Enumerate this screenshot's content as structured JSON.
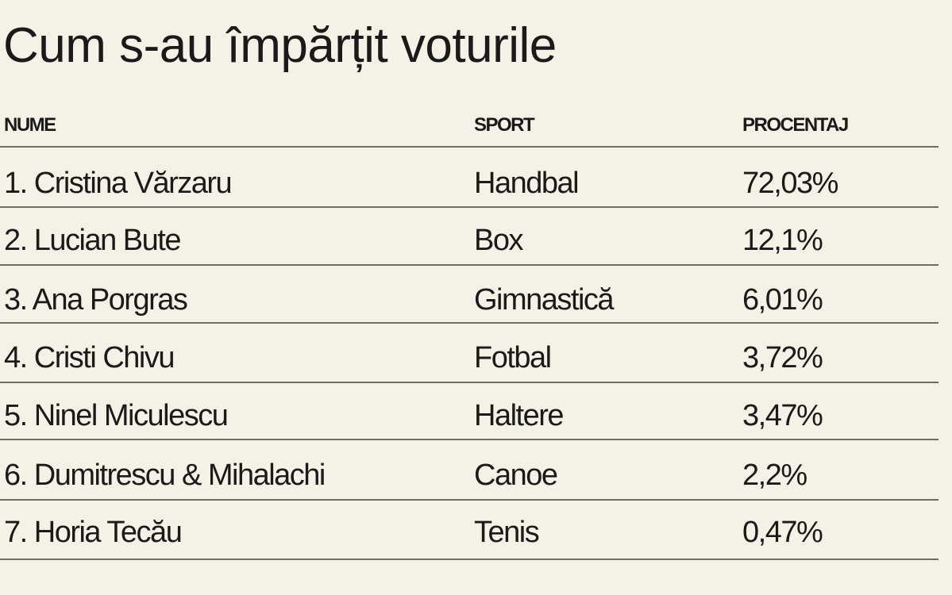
{
  "title": "Cum s-au împărțit voturile",
  "table": {
    "header": [
      "NUME",
      "SPORT",
      "PROCENTAJ"
    ],
    "rows": [
      [
        "1. Cristina Vărzaru",
        "Handbal",
        "72,03%"
      ],
      [
        "2. Lucian Bute",
        "Box",
        "12,1%"
      ],
      [
        "3. Ana Porgras",
        "Gimnastică",
        "6,01%"
      ],
      [
        "4. Cristi Chivu",
        "Fotbal",
        "3,72%"
      ],
      [
        "5. Ninel Miculescu",
        "Haltere",
        "3,47%"
      ],
      [
        "6. Dumitrescu & Mihalachi",
        "Canoe",
        "2,2%"
      ],
      [
        "7. Horia Tecău",
        "Tenis",
        "0,47%"
      ]
    ]
  }
}
